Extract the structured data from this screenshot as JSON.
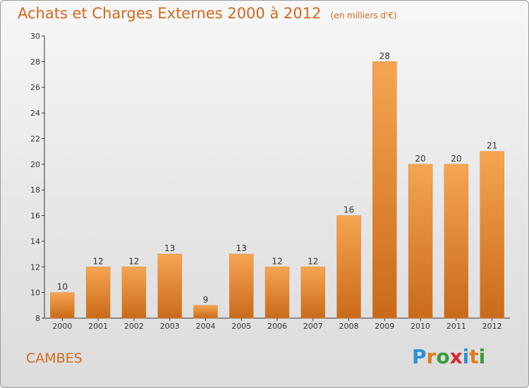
{
  "title": "Achats et Charges Externes 2000 à 2012",
  "subtitle": "(en milliers d'€)",
  "commune": "CAMBES",
  "logo": {
    "letters": [
      "P",
      "r",
      "o",
      "x",
      "i",
      "t",
      "i"
    ],
    "colors": [
      "#2f8fd8",
      "#e07b1b",
      "#3a9a3a",
      "#d8262e",
      "#2f8fd8",
      "#e07b1b",
      "#3a9a3a"
    ]
  },
  "colors": {
    "bar_top": "#f6a552",
    "bar_bottom": "#c96a1a",
    "title": "#d2691e",
    "axis": "#333333"
  },
  "chart_data": {
    "type": "bar",
    "categories": [
      "2000",
      "2001",
      "2002",
      "2003",
      "2004",
      "2005",
      "2006",
      "2007",
      "2008",
      "2009",
      "2010",
      "2011",
      "2012"
    ],
    "values": [
      10,
      12,
      12,
      13,
      9,
      13,
      12,
      12,
      16,
      28,
      20,
      20,
      21
    ],
    "ylim": [
      8,
      30
    ],
    "yticks": [
      8,
      10,
      12,
      14,
      16,
      18,
      20,
      22,
      24,
      26,
      28,
      30
    ],
    "grid": false,
    "data_labels": true
  }
}
